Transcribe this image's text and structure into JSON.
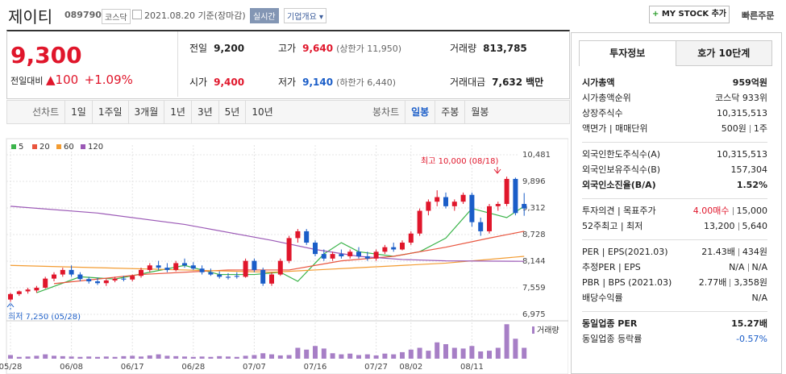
{
  "header": {
    "name": "제이티",
    "code": "089790",
    "market": "코스닥",
    "date": "2021.08.20 기준(장마감)",
    "realtime": "실시간",
    "overview": "기업개요",
    "mystock": "MY STOCK 추가",
    "order": "빠른주문"
  },
  "quote": {
    "price": "9,300",
    "change_label": "전일대비",
    "change": "100",
    "change_rate": "+1.09%",
    "items": [
      {
        "label": "전일",
        "value": "9,200"
      },
      {
        "label": "고가",
        "value": "9,640",
        "color": "#e0162b",
        "note": "(상한가 11,950)"
      },
      {
        "label": "거래량",
        "value": "813,785"
      },
      {
        "label": "시가",
        "value": "9,400",
        "color": "#e0162b"
      },
      {
        "label": "저가",
        "value": "9,140",
        "color": "#1a5dc8",
        "note": "(하한가 6,440)"
      },
      {
        "label": "거래대금",
        "value": "7,632",
        "note": "백만"
      }
    ]
  },
  "tabs": {
    "line": [
      "선차트",
      "1일",
      "1주일",
      "3개월",
      "1년",
      "3년",
      "5년",
      "10년"
    ],
    "candle": [
      "봉차트",
      "일봉",
      "주봉",
      "월봉"
    ],
    "active": "일봉"
  },
  "chart": {
    "type": "candlestick",
    "categories": [
      "05/28",
      null,
      null,
      null,
      null,
      null,
      null,
      "06/08",
      null,
      null,
      null,
      null,
      null,
      null,
      "06/17",
      null,
      null,
      null,
      null,
      null,
      null,
      "06/28",
      null,
      null,
      null,
      null,
      null,
      null,
      "07/07",
      null,
      null,
      null,
      null,
      null,
      null,
      "07/16",
      null,
      null,
      null,
      null,
      null,
      null,
      "07/27",
      null,
      null,
      null,
      "08/02",
      null,
      null,
      null,
      null,
      null,
      null,
      "08/11",
      null,
      null,
      null,
      null,
      null,
      null
    ],
    "open": [
      7300,
      7420,
      7480,
      7500,
      7560,
      7760,
      7850,
      7950,
      7850,
      7750,
      7700,
      7660,
      7720,
      7760,
      7740,
      7820,
      7950,
      8050,
      8000,
      7950,
      8100,
      8050,
      7980,
      7900,
      7850,
      7800,
      7820,
      7800,
      8150,
      7950,
      7650,
      7850,
      8150,
      8650,
      8800,
      8550,
      8300,
      8200,
      8300,
      8250,
      8350,
      8250,
      8200,
      8350,
      8450,
      8400,
      8550,
      8750,
      9250,
      9450,
      9550,
      9350,
      9450,
      9600,
      9000,
      8800,
      9350,
      9400,
      9950,
      9400
    ],
    "high": [
      7450,
      7500,
      7560,
      7600,
      7800,
      7900,
      8000,
      8050,
      7900,
      7800,
      7780,
      7750,
      7800,
      7820,
      7850,
      8000,
      8100,
      8150,
      8100,
      8150,
      8200,
      8120,
      8050,
      7980,
      7920,
      7880,
      7900,
      8200,
      8200,
      8000,
      7900,
      8200,
      8700,
      8850,
      8850,
      8600,
      8400,
      8350,
      8400,
      8400,
      8450,
      8350,
      8400,
      8500,
      8550,
      8600,
      8800,
      9300,
      9500,
      9700,
      9650,
      9500,
      9650,
      9650,
      9100,
      9400,
      9450,
      10000,
      9980,
      9640
    ],
    "low": [
      7250,
      7380,
      7430,
      7450,
      7540,
      7700,
      7800,
      7800,
      7700,
      7650,
      7620,
      7600,
      7680,
      7700,
      7700,
      7780,
      7900,
      7950,
      7900,
      7920,
      8000,
      7950,
      7850,
      7820,
      7760,
      7740,
      7760,
      7780,
      7900,
      7600,
      7600,
      7820,
      8100,
      8550,
      8500,
      8250,
      8150,
      8150,
      8200,
      8200,
      8200,
      8150,
      8150,
      8300,
      8350,
      8380,
      8500,
      8700,
      9150,
      9350,
      9300,
      9250,
      9400,
      8900,
      8700,
      8750,
      9250,
      9350,
      9150,
      9140
    ],
    "close": [
      7420,
      7480,
      7520,
      7560,
      7760,
      7850,
      7950,
      7850,
      7750,
      7700,
      7660,
      7720,
      7760,
      7740,
      7820,
      7950,
      8050,
      8000,
      7950,
      8100,
      8050,
      7980,
      7900,
      7850,
      7800,
      7780,
      7800,
      8150,
      7950,
      7650,
      7850,
      8150,
      8650,
      8800,
      8550,
      8300,
      8200,
      8300,
      8250,
      8350,
      8250,
      8200,
      8350,
      8450,
      8400,
      8550,
      8750,
      9250,
      9450,
      9550,
      9350,
      9450,
      9600,
      9000,
      8800,
      9350,
      9400,
      9950,
      9200,
      9300
    ],
    "up_color": "#e0162b",
    "down_color": "#1a5dc8",
    "ylim": [
      6833,
      10640
    ],
    "yticks": [
      {
        "value": 10481,
        "label": "10,481"
      },
      {
        "value": 9896,
        "label": "9,896"
      },
      {
        "value": 9312,
        "label": "9,312"
      },
      {
        "value": 8728,
        "label": "8,728"
      },
      {
        "value": 8144,
        "label": "8,144"
      },
      {
        "value": 7559,
        "label": "7,559"
      },
      {
        "value": 6975,
        "label": "6,975"
      }
    ],
    "grid": true,
    "ma": [
      {
        "name": "5",
        "color": "#3cb44b",
        "x": [
          3,
          8,
          12,
          16,
          20,
          24,
          28,
          31,
          33,
          36,
          38,
          40,
          44,
          47,
          50,
          53,
          55,
          57,
          59
        ],
        "values": [
          7450,
          7800,
          7750,
          7900,
          8050,
          7850,
          7850,
          7900,
          7700,
          8300,
          8550,
          8350,
          8250,
          8350,
          8650,
          9300,
          9200,
          9100,
          9350
        ]
      },
      {
        "name": "20",
        "color": "#e9553e",
        "x": [
          5,
          15,
          25,
          32,
          38,
          44,
          50,
          55,
          59
        ],
        "values": [
          7650,
          7850,
          7950,
          7950,
          8150,
          8250,
          8450,
          8650,
          8800
        ]
      },
      {
        "name": "60",
        "color": "#f39c32",
        "x": [
          0,
          10,
          20,
          30,
          40,
          50,
          59
        ],
        "values": [
          8050,
          8000,
          7950,
          7900,
          8000,
          8100,
          8250
        ]
      },
      {
        "name": "120",
        "color": "#9b59b6",
        "x": [
          0,
          10,
          20,
          30,
          35,
          40,
          45,
          50,
          59
        ],
        "values": [
          9350,
          9200,
          8950,
          8600,
          8400,
          8250,
          8180,
          8150,
          8140
        ]
      }
    ],
    "volume": {
      "name": "거래량",
      "color": "#a77fc6",
      "ylim": [
        0,
        100
      ],
      "values": [
        10,
        5,
        6,
        8,
        12,
        8,
        7,
        6,
        5,
        6,
        5,
        6,
        5,
        7,
        8,
        6,
        9,
        12,
        8,
        7,
        6,
        5,
        6,
        5,
        7,
        6,
        5,
        8,
        10,
        15,
        12,
        9,
        10,
        30,
        25,
        35,
        28,
        15,
        12,
        14,
        10,
        12,
        9,
        14,
        12,
        18,
        25,
        30,
        22,
        45,
        40,
        30,
        28,
        35,
        20,
        22,
        30,
        95,
        55,
        30
      ]
    },
    "annotations": {
      "high": "최고 10,000 (08/18)",
      "low": "최저 7,250 (05/28)"
    }
  },
  "invest": {
    "tabs": [
      "투자정보",
      "호가 10단계"
    ],
    "groups": [
      [
        {
          "label": "시가총액",
          "value": "959억원",
          "bold": true
        },
        {
          "label": "시가총액순위",
          "value": "코스닥 933위"
        },
        {
          "label": "상장주식수",
          "value": "10,315,513"
        },
        {
          "label": "액면가 | 매매단위",
          "value": "500원",
          "value2": "1주"
        }
      ],
      [
        {
          "label": "외국인한도주식수(A)",
          "value": "10,315,513"
        },
        {
          "label": "외국인보유주식수(B)",
          "value": "157,304"
        },
        {
          "label": "외국인소진율(B/A)",
          "value": "1.52%",
          "bold": true
        }
      ],
      [
        {
          "label": "투자의견 | 목표주가",
          "value": "4.00매수",
          "color": "#e0162b",
          "value2": "15,000"
        },
        {
          "label": "52주최고 | 최저",
          "value": "13,200",
          "value2": "5,640"
        }
      ],
      [
        {
          "label": "PER | EPS(2021.03)",
          "value": "21.43배",
          "value2": "434원"
        },
        {
          "label": "추정PER | EPS",
          "value": "N/A",
          "value2": "N/A"
        },
        {
          "label": "PBR | BPS (2021.03)",
          "value": "2.77배",
          "value2": "3,358원"
        },
        {
          "label": "배당수익률",
          "value": "N/A"
        }
      ],
      [
        {
          "label": "동일업종 PER",
          "value": "15.27배",
          "bold": true
        },
        {
          "label": "동일업종 등락률",
          "value": "-0.57%",
          "color": "#1a5dc8"
        }
      ]
    ]
  }
}
